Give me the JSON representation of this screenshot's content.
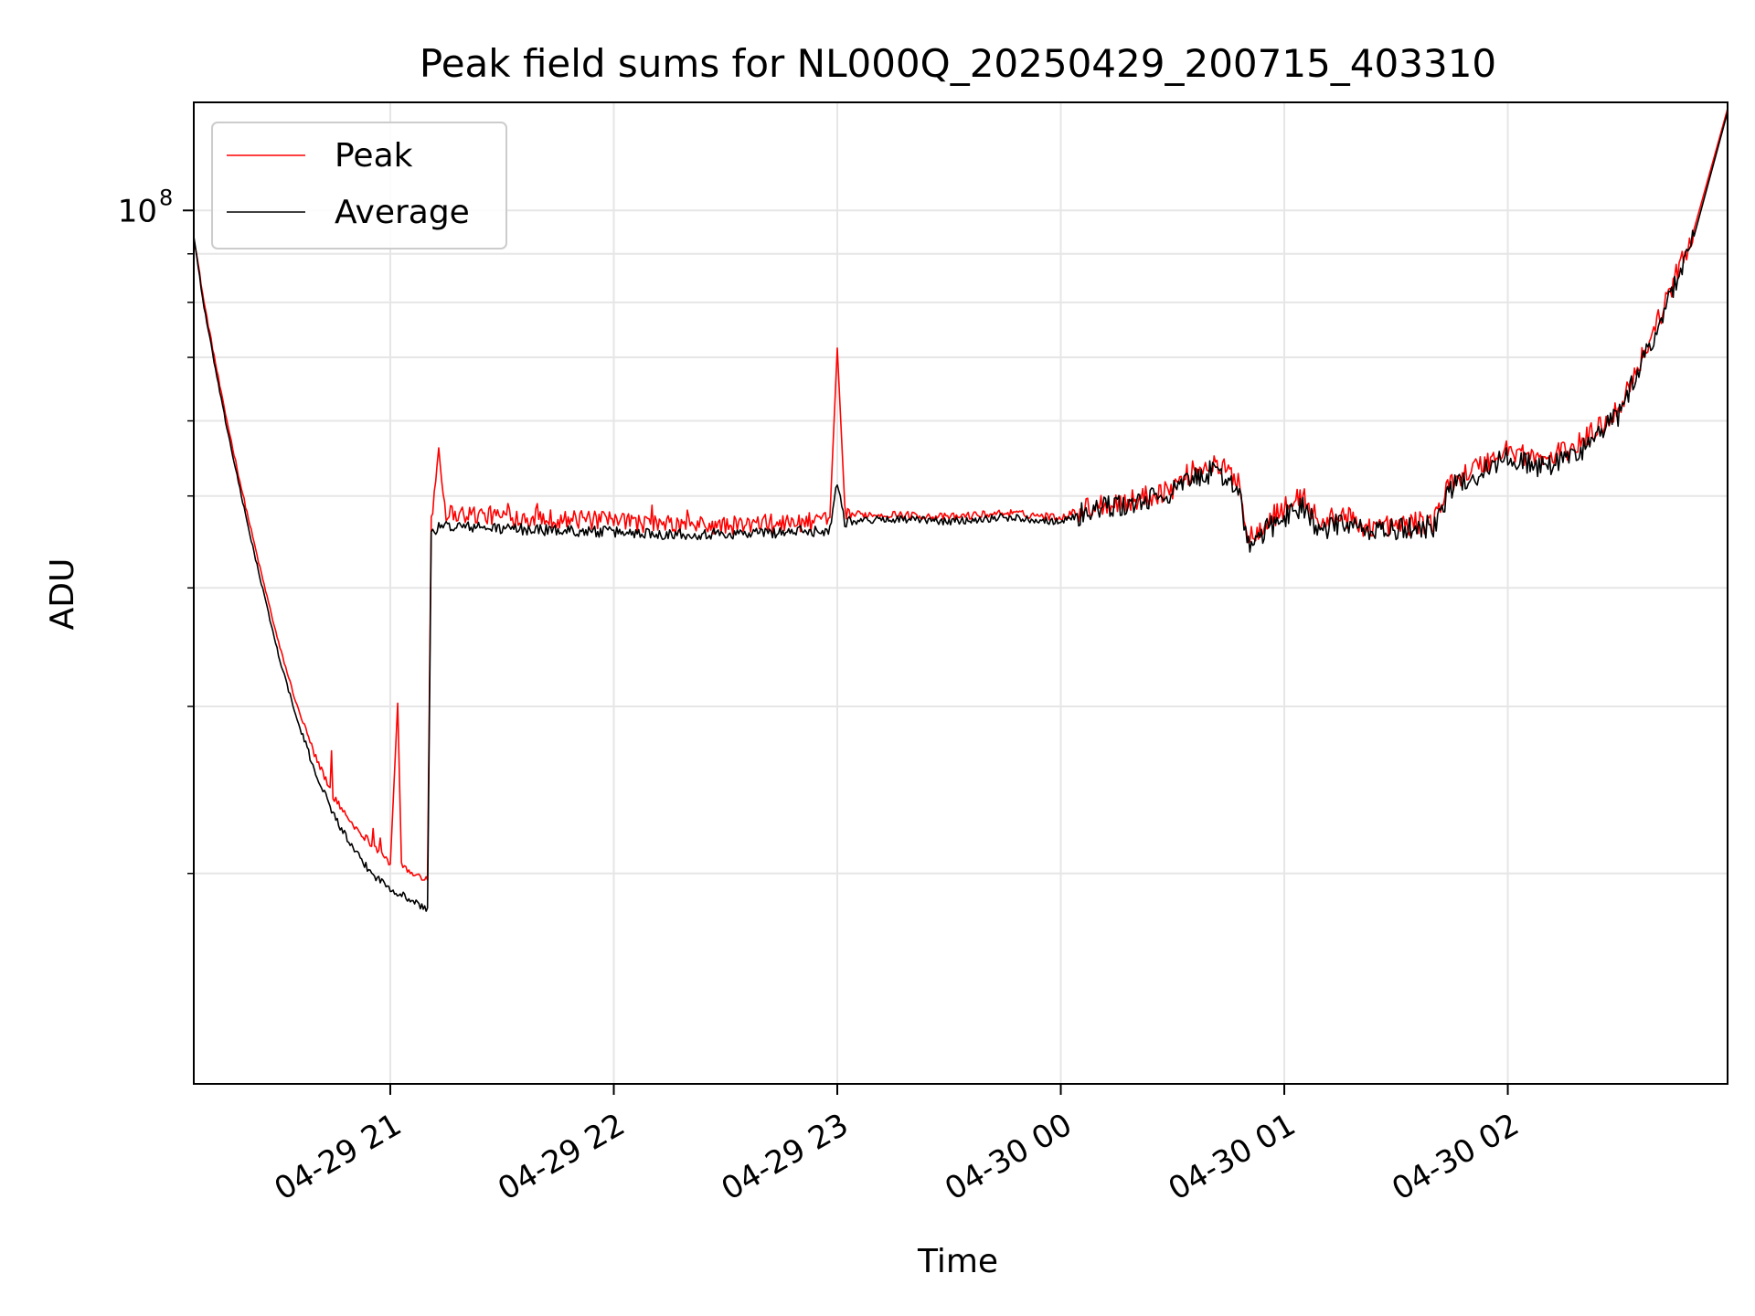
{
  "chart_data": {
    "type": "line",
    "title": "Peak field sums for NL000Q_20250429_200715_403310",
    "xlabel": "Time",
    "ylabel": "ADU",
    "yscale": "log",
    "ylim": [
      12000000,
      130000000
    ],
    "xlim": [
      "2025-04-29 20:07:15",
      "2025-04-30 02:59:00"
    ],
    "x_ticks": [
      {
        "x": "2025-04-29 21:00",
        "label": "04-29 21"
      },
      {
        "x": "2025-04-29 22:00",
        "label": "04-29 22"
      },
      {
        "x": "2025-04-29 23:00",
        "label": "04-29 23"
      },
      {
        "x": "2025-04-30 00:00",
        "label": "04-30 00"
      },
      {
        "x": "2025-04-30 01:00",
        "label": "04-30 01"
      },
      {
        "x": "2025-04-30 02:00",
        "label": "04-30 02"
      }
    ],
    "y_major_ticks": [
      {
        "value": 100000000,
        "label": "10",
        "exponent": "8"
      }
    ],
    "y_minor_ticks": [
      20000000,
      30000000,
      40000000,
      50000000,
      60000000,
      70000000,
      80000000,
      90000000
    ],
    "grid": true,
    "legend_position": "upper-left",
    "series": [
      {
        "name": "Peak",
        "color": "#ff0000",
        "points": [
          [
            "2025-04-29 20:07:15",
            94000000
          ],
          [
            "2025-04-29 20:10",
            80000000
          ],
          [
            "2025-04-29 20:15",
            63000000
          ],
          [
            "2025-04-29 20:20",
            51000000
          ],
          [
            "2025-04-29 20:25",
            42000000
          ],
          [
            "2025-04-29 20:30",
            35000000
          ],
          [
            "2025-04-29 20:35",
            30000000
          ],
          [
            "2025-04-29 20:40",
            26500000
          ],
          [
            "2025-04-29 20:45",
            24000000
          ],
          [
            "2025-04-29 20:50",
            22500000
          ],
          [
            "2025-04-29 20:55",
            21500000
          ],
          [
            "2025-04-29 21:00",
            20500000
          ],
          [
            "2025-04-29 21:02",
            30000000
          ],
          [
            "2025-04-29 21:03",
            20500000
          ],
          [
            "2025-04-29 21:05",
            20000000
          ],
          [
            "2025-04-29 21:10",
            19800000
          ],
          [
            "2025-04-29 21:11",
            47000000
          ],
          [
            "2025-04-29 21:13",
            56000000
          ],
          [
            "2025-04-29 21:15",
            48000000
          ],
          [
            "2025-04-29 21:30",
            47600000
          ],
          [
            "2025-04-29 21:45",
            47300000
          ],
          [
            "2025-04-29 22:00",
            47000000
          ],
          [
            "2025-04-29 22:15",
            46600000
          ],
          [
            "2025-04-29 22:30",
            46500000
          ],
          [
            "2025-04-29 22:45",
            46800000
          ],
          [
            "2025-04-29 22:58",
            47000000
          ],
          [
            "2025-04-29 23:00",
            70000000
          ],
          [
            "2025-04-29 23:02",
            47800000
          ],
          [
            "2025-04-29 23:15",
            47800000
          ],
          [
            "2025-04-29 23:30",
            47500000
          ],
          [
            "2025-04-29 23:45",
            48000000
          ],
          [
            "2025-04-30 00:00",
            47500000
          ],
          [
            "2025-04-30 00:10",
            49000000
          ],
          [
            "2025-04-30 00:20",
            49500000
          ],
          [
            "2025-04-30 00:30",
            51000000
          ],
          [
            "2025-04-30 00:35",
            53000000
          ],
          [
            "2025-04-30 00:40",
            54000000
          ],
          [
            "2025-04-30 00:45",
            53000000
          ],
          [
            "2025-04-30 00:48",
            52000000
          ],
          [
            "2025-04-30 00:50",
            45000000
          ],
          [
            "2025-04-30 00:55",
            47000000
          ],
          [
            "2025-04-30 01:00",
            48500000
          ],
          [
            "2025-04-30 01:05",
            50000000
          ],
          [
            "2025-04-30 01:10",
            46500000
          ],
          [
            "2025-04-30 01:15",
            48000000
          ],
          [
            "2025-04-30 01:20",
            46500000
          ],
          [
            "2025-04-30 01:30",
            46500000
          ],
          [
            "2025-04-30 01:40",
            47000000
          ],
          [
            "2025-04-30 01:45",
            52000000
          ],
          [
            "2025-04-30 01:55",
            54500000
          ],
          [
            "2025-04-30 02:00",
            56000000
          ],
          [
            "2025-04-30 02:10",
            54500000
          ],
          [
            "2025-04-30 02:20",
            57000000
          ],
          [
            "2025-04-30 02:30",
            62000000
          ],
          [
            "2025-04-30 02:40",
            76000000
          ],
          [
            "2025-04-30 02:50",
            95000000
          ],
          [
            "2025-04-30 02:59",
            128000000
          ]
        ]
      },
      {
        "name": "Average",
        "color": "#000000",
        "points": [
          [
            "2025-04-29 20:07:15",
            94000000
          ],
          [
            "2025-04-29 20:10",
            79000000
          ],
          [
            "2025-04-29 20:15",
            62000000
          ],
          [
            "2025-04-29 20:20",
            50000000
          ],
          [
            "2025-04-29 20:25",
            41000000
          ],
          [
            "2025-04-29 20:30",
            34000000
          ],
          [
            "2025-04-29 20:35",
            29000000
          ],
          [
            "2025-04-29 20:40",
            25500000
          ],
          [
            "2025-04-29 20:45",
            23000000
          ],
          [
            "2025-04-29 20:50",
            21200000
          ],
          [
            "2025-04-29 20:55",
            20000000
          ],
          [
            "2025-04-29 21:00",
            19300000
          ],
          [
            "2025-04-29 21:05",
            18800000
          ],
          [
            "2025-04-29 21:10",
            18300000
          ],
          [
            "2025-04-29 21:11",
            46000000
          ],
          [
            "2025-04-29 21:15",
            46500000
          ],
          [
            "2025-04-29 21:30",
            46200000
          ],
          [
            "2025-04-29 21:45",
            46000000
          ],
          [
            "2025-04-29 22:00",
            45800000
          ],
          [
            "2025-04-29 22:15",
            45600000
          ],
          [
            "2025-04-29 22:30",
            45600000
          ],
          [
            "2025-04-29 22:45",
            45800000
          ],
          [
            "2025-04-29 22:58",
            46000000
          ],
          [
            "2025-04-29 23:00",
            52000000
          ],
          [
            "2025-04-29 23:02",
            47000000
          ],
          [
            "2025-04-29 23:15",
            47300000
          ],
          [
            "2025-04-29 23:30",
            47000000
          ],
          [
            "2025-04-29 23:45",
            47500000
          ],
          [
            "2025-04-30 00:00",
            47000000
          ],
          [
            "2025-04-30 00:10",
            48500000
          ],
          [
            "2025-04-30 00:20",
            49000000
          ],
          [
            "2025-04-30 00:30",
            50500000
          ],
          [
            "2025-04-30 00:35",
            52000000
          ],
          [
            "2025-04-30 00:40",
            53000000
          ],
          [
            "2025-04-30 00:45",
            52000000
          ],
          [
            "2025-04-30 00:48",
            51000000
          ],
          [
            "2025-04-30 00:50",
            44000000
          ],
          [
            "2025-04-30 00:55",
            46000000
          ],
          [
            "2025-04-30 01:00",
            47500000
          ],
          [
            "2025-04-30 01:05",
            49000000
          ],
          [
            "2025-04-30 01:10",
            45500000
          ],
          [
            "2025-04-30 01:15",
            47000000
          ],
          [
            "2025-04-30 01:20",
            46000000
          ],
          [
            "2025-04-30 01:30",
            46000000
          ],
          [
            "2025-04-30 01:40",
            46500000
          ],
          [
            "2025-04-30 01:45",
            51000000
          ],
          [
            "2025-04-30 01:55",
            53500000
          ],
          [
            "2025-04-30 02:00",
            55000000
          ],
          [
            "2025-04-30 02:10",
            53500000
          ],
          [
            "2025-04-30 02:20",
            56000000
          ],
          [
            "2025-04-30 02:30",
            61000000
          ],
          [
            "2025-04-30 02:40",
            75000000
          ],
          [
            "2025-04-30 02:50",
            94000000
          ],
          [
            "2025-04-30 02:59",
            127000000
          ]
        ]
      }
    ]
  }
}
